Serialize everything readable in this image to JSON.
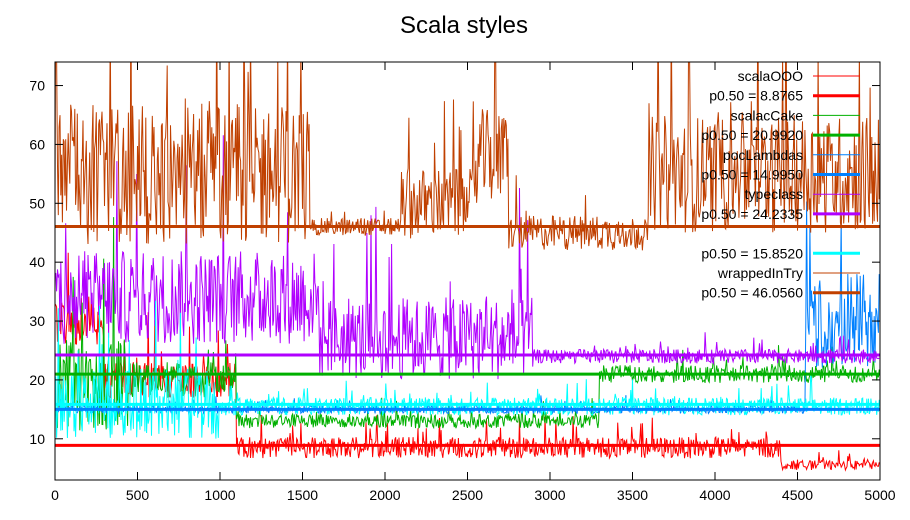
{
  "chart_data": {
    "type": "line",
    "title": "Scala styles",
    "xlabel": "",
    "ylabel": "",
    "xlim": [
      0,
      5000
    ],
    "ylim": [
      3,
      74
    ],
    "x_ticks": [
      0,
      500,
      1000,
      1500,
      2000,
      2500,
      3000,
      3500,
      4000,
      4500,
      5000
    ],
    "y_ticks": [
      10,
      20,
      30,
      40,
      50,
      60,
      70
    ],
    "grid": false,
    "legend_position": "top-right",
    "series": [
      {
        "name": "scalaOOO",
        "color": "#ff0000",
        "median_label": "p0.50 = 8.8765",
        "median": 8.8765,
        "segments": [
          {
            "from": 0,
            "to": 300,
            "base": 30,
            "spread": 4
          },
          {
            "from": 300,
            "to": 1100,
            "base": 20,
            "spread": 3
          },
          {
            "from": 1100,
            "to": 4400,
            "base": 8.5,
            "spread": 1.8
          },
          {
            "from": 4400,
            "to": 5000,
            "base": 5.5,
            "spread": 0.8
          }
        ]
      },
      {
        "name": "scalacCake",
        "color": "#00b000",
        "median_label": "p0.50 = 20.9920",
        "median": 20.992,
        "segments": [
          {
            "from": 0,
            "to": 450,
            "base": 19,
            "spread": 8
          },
          {
            "from": 450,
            "to": 1100,
            "base": 20,
            "spread": 3
          },
          {
            "from": 1100,
            "to": 3300,
            "base": 13,
            "spread": 1.2
          },
          {
            "from": 3300,
            "to": 5000,
            "base": 21,
            "spread": 1.5
          }
        ]
      },
      {
        "name": "pocLambdas",
        "color": "#0080ff",
        "median_label": "p0.50 = 14.9950",
        "median": 14.995,
        "segments": [
          {
            "from": 0,
            "to": 4550,
            "base": 15,
            "spread": 0.7
          },
          {
            "from": 4550,
            "to": 5000,
            "base": 30,
            "spread": 8
          }
        ]
      },
      {
        "name": "typeclass",
        "color": "#b000ff",
        "median_label": "p0.50 = 24.2335",
        "median": 24.2335,
        "segments": [
          {
            "from": 0,
            "to": 1600,
            "base": 34,
            "spread": 8
          },
          {
            "from": 1600,
            "to": 2900,
            "base": 27,
            "spread": 7
          },
          {
            "from": 2900,
            "to": 5000,
            "base": 24,
            "spread": 1.2
          }
        ]
      },
      {
        "name": "",
        "color": "#00ffff",
        "median_label": "p0.50 = 15.8520",
        "median": 15.852,
        "segments": [
          {
            "from": 0,
            "to": 1000,
            "base": 16,
            "spread": 6
          },
          {
            "from": 1000,
            "to": 5000,
            "base": 15.5,
            "spread": 1.5
          }
        ]
      },
      {
        "name": "wrappedInTry",
        "color": "#c04000",
        "median_label": "p0.50 = 46.0560",
        "median": 46.056,
        "segments": [
          {
            "from": 0,
            "to": 1550,
            "base": 55,
            "spread": 12
          },
          {
            "from": 1550,
            "to": 2100,
            "base": 46,
            "spread": 1.5
          },
          {
            "from": 2100,
            "to": 2550,
            "base": 50,
            "spread": 6
          },
          {
            "from": 2550,
            "to": 2750,
            "base": 58,
            "spread": 8
          },
          {
            "from": 2750,
            "to": 3600,
            "base": 45,
            "spread": 3
          },
          {
            "from": 3600,
            "to": 5000,
            "base": 55,
            "spread": 10
          }
        ]
      }
    ]
  }
}
